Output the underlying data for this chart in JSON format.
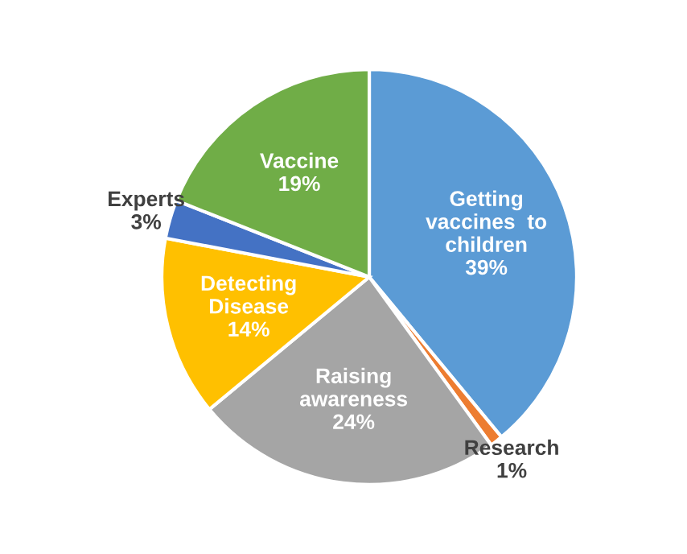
{
  "chart_data": {
    "type": "pie",
    "categories": [
      "Getting\nvaccines  to\nchildren",
      "Research",
      "Raising\nawareness",
      "Detecting\nDisease",
      "Experts",
      "Vaccine"
    ],
    "values": [
      39,
      1,
      24,
      14,
      3,
      19
    ],
    "value_labels": [
      "39%",
      "1%",
      "24%",
      "14%",
      "3%",
      "19%"
    ],
    "colors": [
      "#5b9bd5",
      "#ed7d31",
      "#a5a5a5",
      "#ffc000",
      "#4472c4",
      "#70ad47"
    ]
  }
}
